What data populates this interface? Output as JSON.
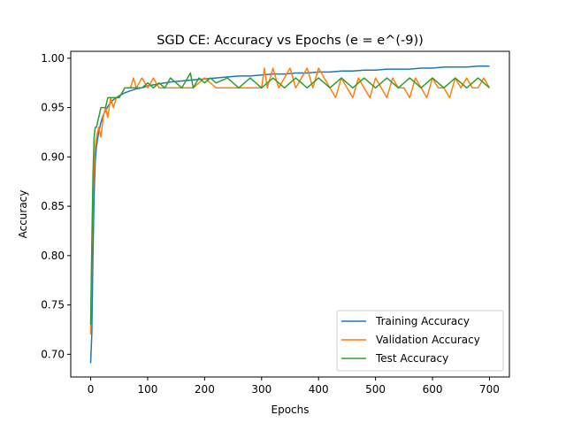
{
  "chart_data": {
    "type": "line",
    "title": "SGD CE: Accuracy vs Epochs (e = e^(-9))",
    "xlabel": "Epochs",
    "ylabel": "Accuracy",
    "xlim": [
      -35,
      735
    ],
    "ylim": [
      0.677,
      1.007
    ],
    "xticks": [
      0,
      100,
      200,
      300,
      400,
      500,
      600,
      700
    ],
    "xtick_labels": [
      "0",
      "100",
      "200",
      "300",
      "400",
      "500",
      "600",
      "700"
    ],
    "yticks": [
      0.7,
      0.75,
      0.8,
      0.85,
      0.9,
      0.95,
      1.0
    ],
    "ytick_labels": [
      "0.70",
      "0.75",
      "0.80",
      "0.85",
      "0.90",
      "0.95",
      "1.00"
    ],
    "grid": false,
    "legend_position": "lower-right",
    "series": [
      {
        "name": "Training Accuracy",
        "color": "#1f77b4",
        "x": [
          0,
          2,
          4,
          6,
          8,
          10,
          14,
          18,
          22,
          26,
          30,
          35,
          40,
          45,
          50,
          60,
          70,
          80,
          90,
          100,
          120,
          140,
          160,
          180,
          200,
          220,
          240,
          260,
          280,
          300,
          320,
          340,
          360,
          380,
          400,
          420,
          440,
          460,
          480,
          500,
          520,
          540,
          560,
          580,
          600,
          620,
          640,
          660,
          680,
          700
        ],
        "y": [
          0.691,
          0.72,
          0.8,
          0.86,
          0.895,
          0.91,
          0.925,
          0.935,
          0.942,
          0.947,
          0.951,
          0.955,
          0.958,
          0.96,
          0.962,
          0.965,
          0.967,
          0.969,
          0.97,
          0.972,
          0.974,
          0.976,
          0.977,
          0.978,
          0.979,
          0.98,
          0.981,
          0.982,
          0.982,
          0.983,
          0.984,
          0.984,
          0.985,
          0.985,
          0.986,
          0.986,
          0.987,
          0.987,
          0.988,
          0.988,
          0.989,
          0.989,
          0.989,
          0.99,
          0.99,
          0.991,
          0.991,
          0.991,
          0.992,
          0.992
        ]
      },
      {
        "name": "Validation Accuracy",
        "color": "#ff7f0e",
        "x": [
          0,
          2,
          4,
          6,
          8,
          10,
          14,
          18,
          22,
          26,
          30,
          35,
          40,
          45,
          50,
          60,
          70,
          75,
          80,
          90,
          100,
          110,
          120,
          140,
          160,
          180,
          200,
          220,
          240,
          260,
          280,
          300,
          305,
          310,
          320,
          330,
          340,
          350,
          360,
          370,
          380,
          390,
          400,
          410,
          420,
          430,
          440,
          450,
          460,
          470,
          480,
          490,
          500,
          510,
          520,
          530,
          540,
          550,
          560,
          570,
          580,
          590,
          600,
          610,
          620,
          630,
          640,
          650,
          660,
          670,
          680,
          690,
          700
        ],
        "y": [
          0.72,
          0.8,
          0.86,
          0.89,
          0.91,
          0.92,
          0.93,
          0.92,
          0.94,
          0.95,
          0.94,
          0.96,
          0.95,
          0.96,
          0.96,
          0.97,
          0.97,
          0.98,
          0.97,
          0.98,
          0.97,
          0.98,
          0.97,
          0.97,
          0.97,
          0.97,
          0.98,
          0.97,
          0.97,
          0.97,
          0.97,
          0.97,
          0.99,
          0.97,
          0.99,
          0.97,
          0.98,
          0.99,
          0.97,
          0.98,
          0.99,
          0.97,
          0.99,
          0.98,
          0.97,
          0.96,
          0.98,
          0.97,
          0.96,
          0.98,
          0.97,
          0.96,
          0.98,
          0.97,
          0.96,
          0.98,
          0.97,
          0.97,
          0.96,
          0.98,
          0.97,
          0.96,
          0.98,
          0.97,
          0.97,
          0.96,
          0.98,
          0.97,
          0.98,
          0.97,
          0.97,
          0.98,
          0.97
        ]
      },
      {
        "name": "Test Accuracy",
        "color": "#2ca02c",
        "x": [
          0,
          2,
          4,
          6,
          8,
          10,
          14,
          18,
          22,
          26,
          30,
          35,
          40,
          45,
          50,
          60,
          70,
          80,
          90,
          100,
          110,
          120,
          130,
          140,
          150,
          160,
          170,
          175,
          180,
          190,
          200,
          210,
          220,
          240,
          260,
          280,
          300,
          320,
          340,
          360,
          380,
          400,
          420,
          440,
          460,
          480,
          500,
          520,
          540,
          560,
          580,
          600,
          620,
          640,
          660,
          680,
          700
        ],
        "y": [
          0.73,
          0.81,
          0.88,
          0.92,
          0.93,
          0.93,
          0.94,
          0.95,
          0.95,
          0.95,
          0.96,
          0.96,
          0.96,
          0.96,
          0.96,
          0.97,
          0.97,
          0.97,
          0.97,
          0.975,
          0.97,
          0.975,
          0.97,
          0.98,
          0.975,
          0.97,
          0.98,
          0.985,
          0.97,
          0.98,
          0.975,
          0.98,
          0.975,
          0.98,
          0.97,
          0.98,
          0.97,
          0.98,
          0.97,
          0.98,
          0.97,
          0.98,
          0.97,
          0.98,
          0.97,
          0.98,
          0.97,
          0.98,
          0.97,
          0.98,
          0.97,
          0.98,
          0.97,
          0.98,
          0.97,
          0.98,
          0.97
        ]
      }
    ]
  }
}
